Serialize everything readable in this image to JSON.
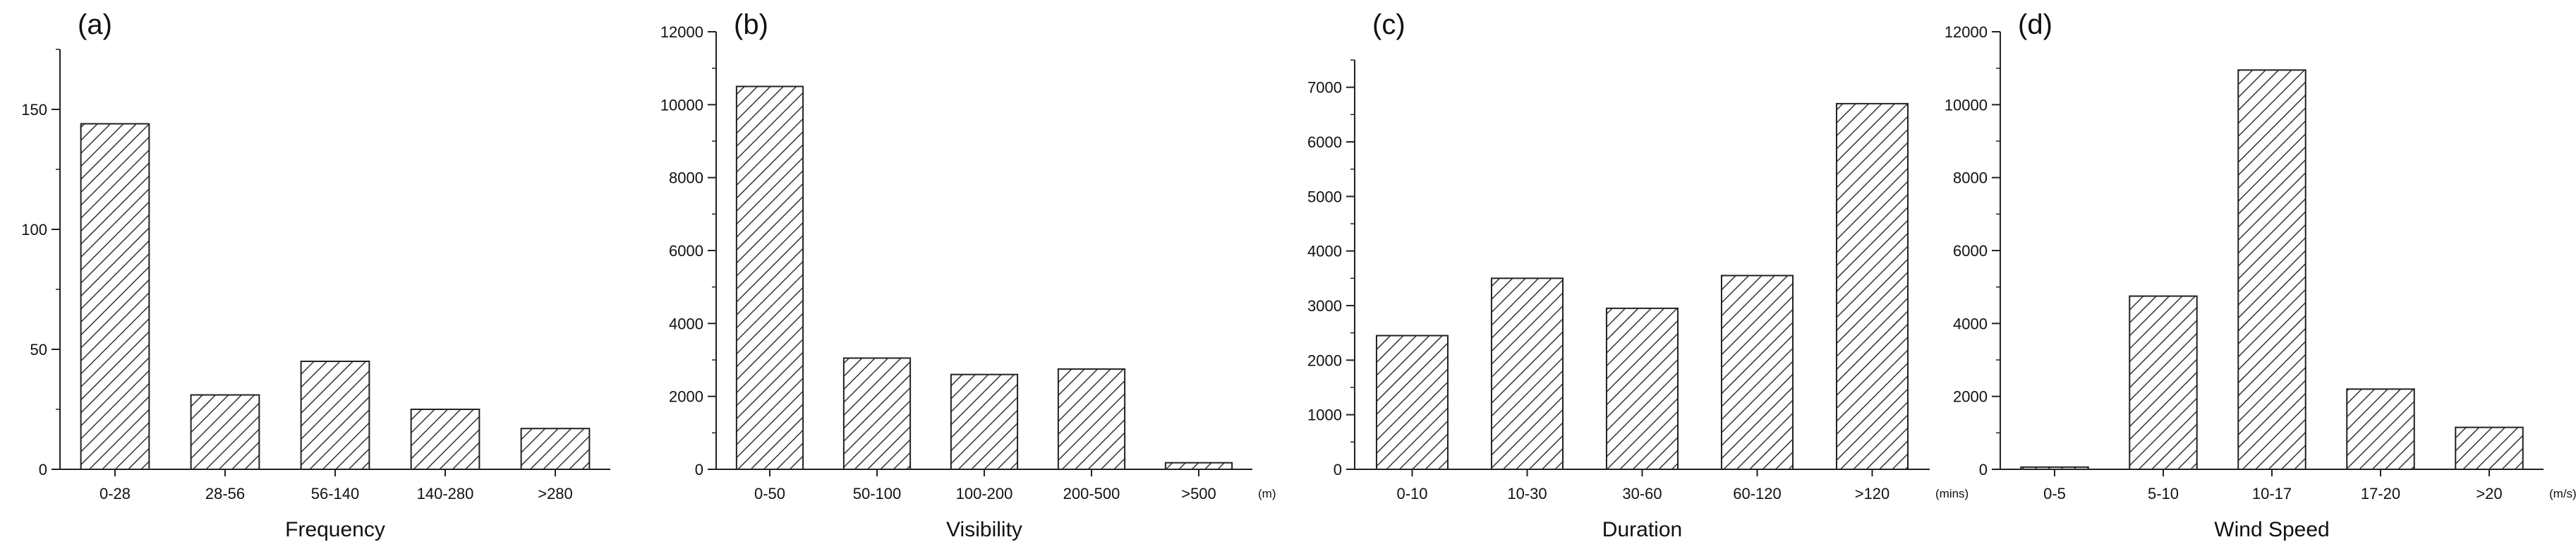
{
  "chart_data": [
    {
      "type": "bar",
      "panel_label": "(a)",
      "categories": [
        "0-28",
        "28-56",
        "56-140",
        "140-280",
        ">280"
      ],
      "values": [
        144,
        31,
        45,
        25,
        17
      ],
      "xlabel": "Frequency",
      "unit": "",
      "ylim": [
        0,
        175
      ],
      "yticks": [
        0,
        50,
        100,
        150
      ],
      "yminor": 25,
      "fill": "diagonal-hatch",
      "grid": false
    },
    {
      "type": "bar",
      "panel_label": "(b)",
      "categories": [
        "0-50",
        "50-100",
        "100-200",
        "200-500",
        ">500"
      ],
      "values": [
        10500,
        3050,
        2600,
        2750,
        180
      ],
      "xlabel": "Visibility",
      "unit": "(m)",
      "ylim": [
        0,
        12000
      ],
      "yticks": [
        0,
        2000,
        4000,
        6000,
        8000,
        10000,
        12000
      ],
      "yminor": 1000,
      "fill": "diagonal-hatch",
      "grid": false
    },
    {
      "type": "bar",
      "panel_label": "(c)",
      "categories": [
        "0-10",
        "10-30",
        "30-60",
        "60-120",
        ">120"
      ],
      "values": [
        2450,
        3500,
        2950,
        3550,
        6700
      ],
      "xlabel": "Duration",
      "unit": "(mins)",
      "ylim": [
        0,
        7500
      ],
      "yticks": [
        0,
        1000,
        2000,
        3000,
        4000,
        5000,
        6000,
        7000
      ],
      "yminor": 500,
      "fill": "diagonal-hatch",
      "grid": false
    },
    {
      "type": "bar",
      "panel_label": "(d)",
      "categories": [
        "0-5",
        "5-10",
        "10-17",
        "17-20",
        ">20"
      ],
      "values": [
        60,
        4750,
        10950,
        2200,
        1150
      ],
      "xlabel": "Wind Speed",
      "unit": "(m/s)",
      "ylim": [
        0,
        12000
      ],
      "yticks": [
        0,
        2000,
        4000,
        6000,
        8000,
        10000,
        12000
      ],
      "yminor": 1000,
      "fill": "diagonal-hatch",
      "grid": false
    }
  ]
}
